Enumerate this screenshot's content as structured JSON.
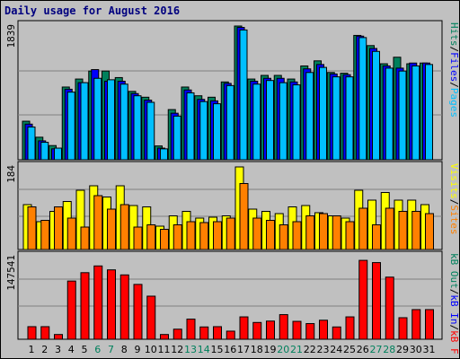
{
  "chart_data": [
    {
      "panel": "pages-files-hits",
      "type": "bar",
      "title": "Daily usage for August 2016",
      "categories": [
        "1",
        "2",
        "3",
        "4",
        "5",
        "6",
        "7",
        "8",
        "9",
        "10",
        "11",
        "12",
        "13",
        "14",
        "15",
        "16",
        "17",
        "18",
        "19",
        "20",
        "21",
        "22",
        "23",
        "24",
        "25",
        "26",
        "27",
        "28",
        "29",
        "30",
        "31"
      ],
      "weekend_days": [
        "6",
        "7",
        "13",
        "14",
        "20",
        "21",
        "27",
        "28"
      ],
      "ymax_label": "1839",
      "ylim": [
        0,
        1839
      ],
      "ylabel_parts": [
        "Pages",
        "/",
        "Files",
        "/",
        "Hits"
      ],
      "series": [
        {
          "name": "Hits",
          "color": "#00805c",
          "values": [
            530,
            310,
            195,
            1000,
            1110,
            1220,
            1220,
            1130,
            940,
            860,
            190,
            690,
            1000,
            880,
            860,
            1070,
            1839,
            1110,
            1160,
            1160,
            1110,
            1290,
            1360,
            1200,
            1190,
            1710,
            1570,
            1320,
            1410,
            1320,
            1330
          ]
        },
        {
          "name": "Files",
          "color": "#0000ff",
          "values": [
            490,
            260,
            150,
            970,
            1060,
            1240,
            1080,
            1080,
            910,
            820,
            160,
            640,
            960,
            830,
            810,
            1050,
            1820,
            1080,
            1120,
            1120,
            1070,
            1250,
            1310,
            1180,
            1170,
            1700,
            1530,
            1290,
            1260,
            1330,
            1330
          ]
        },
        {
          "name": "Pages",
          "color": "#00bfff",
          "values": [
            450,
            240,
            160,
            930,
            1060,
            1120,
            1100,
            1040,
            880,
            790,
            150,
            600,
            920,
            800,
            770,
            1020,
            1785,
            1040,
            1090,
            1060,
            1030,
            1200,
            1270,
            1140,
            1140,
            1680,
            1490,
            1260,
            1220,
            1290,
            1310
          ]
        }
      ]
    },
    {
      "panel": "visits-sites",
      "type": "bar",
      "categories": [
        "1",
        "2",
        "3",
        "4",
        "5",
        "6",
        "7",
        "8",
        "9",
        "10",
        "11",
        "12",
        "13",
        "14",
        "15",
        "16",
        "17",
        "18",
        "19",
        "20",
        "21",
        "22",
        "23",
        "24",
        "25",
        "26",
        "27",
        "28",
        "29",
        "30",
        "31"
      ],
      "ymax_label": "184",
      "ylim": [
        0,
        184
      ],
      "ylabel_parts": [
        "Sites",
        "/",
        "Visits"
      ],
      "series": [
        {
          "name": "Visits",
          "color": "#ffff00",
          "values": [
            100,
            62,
            85,
            107,
            132,
            142,
            117,
            142,
            98,
            95,
            52,
            75,
            85,
            70,
            72,
            75,
            184,
            90,
            85,
            80,
            95,
            98,
            82,
            75,
            70,
            132,
            110,
            127,
            110,
            110,
            100
          ]
        },
        {
          "name": "Sites",
          "color": "#ff8000",
          "values": [
            95,
            65,
            95,
            70,
            50,
            120,
            90,
            100,
            50,
            55,
            45,
            55,
            62,
            60,
            62,
            70,
            147,
            70,
            65,
            55,
            62,
            75,
            80,
            75,
            62,
            92,
            55,
            92,
            85,
            85,
            80
          ]
        }
      ]
    },
    {
      "panel": "kbytes",
      "type": "bar",
      "categories": [
        "1",
        "2",
        "3",
        "4",
        "5",
        "6",
        "7",
        "8",
        "9",
        "10",
        "11",
        "12",
        "13",
        "14",
        "15",
        "16",
        "17",
        "18",
        "19",
        "20",
        "21",
        "22",
        "23",
        "24",
        "25",
        "26",
        "27",
        "28",
        "29",
        "30",
        "31"
      ],
      "ymax_label": "147541",
      "ylim": [
        0,
        147541
      ],
      "ylabel_parts": [
        "kB F",
        "/",
        "kB In",
        "/",
        "kB Out"
      ],
      "series": [
        {
          "name": "kB F",
          "color": "#ff0000",
          "values": [
            22500,
            22500,
            8500,
            104000,
            119000,
            131000,
            124000,
            115000,
            98000,
            77000,
            8500,
            18000,
            36000,
            22000,
            22500,
            14500,
            40000,
            30000,
            32500,
            44000,
            32000,
            28000,
            34000,
            22000,
            40000,
            141000,
            137000,
            111000,
            38500,
            53000,
            53000
          ]
        }
      ]
    }
  ],
  "colors": {
    "background": "#c0c0c0",
    "plot_border": "#000000",
    "gridline": "#808080",
    "title": "#00007f",
    "weekday_tick": "#000000",
    "weekend_tick": "#00805c"
  }
}
